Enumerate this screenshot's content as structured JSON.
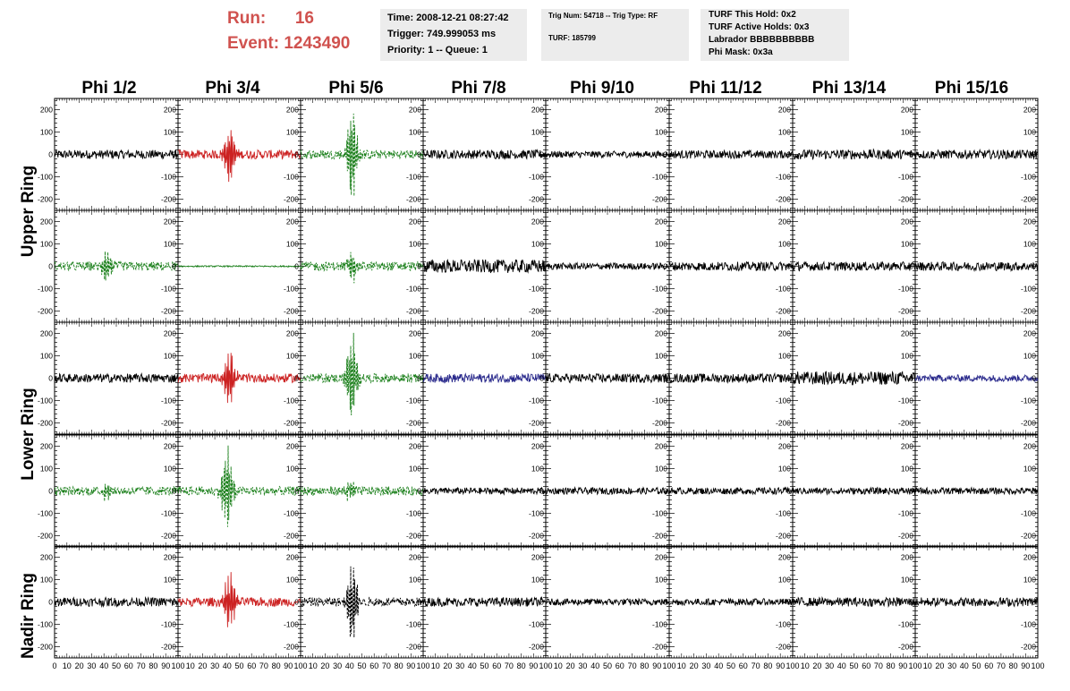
{
  "header": {
    "run_label": "Run:",
    "run_value": "16",
    "event_label": "Event:",
    "event_value": "1243490"
  },
  "info_boxes": {
    "time": "Time: 2008-12-21 08:27:42",
    "trigger": "Trigger: 749.999053 ms",
    "priority": "Priority: 1 -- Queue: 1",
    "trig_num": "Trig Num: 54718 -- Trig Type: RF",
    "turf": "TURF: 185799",
    "turf_hold": "TURF This Hold: 0x2",
    "turf_active": "TURF Active Holds: 0x3",
    "labrador": "Labrador BBBBBBBBBB",
    "phi_mask": "Phi Mask: 0x3a"
  },
  "columns": [
    "Phi 1/2",
    "Phi 3/4",
    "Phi 5/6",
    "Phi 7/8",
    "Phi 9/10",
    "Phi 11/12",
    "Phi 13/14",
    "Phi 15/16"
  ],
  "ring_labels": [
    "Upper Ring",
    "Lower Ring",
    "Nadir Ring"
  ],
  "y_ticks": [
    "200",
    "100",
    "0",
    "-100",
    "-200"
  ],
  "x_ticks_first": [
    "0",
    "10",
    "20",
    "30",
    "40",
    "50",
    "60",
    "70",
    "80",
    "90",
    "100"
  ],
  "x_ticks_other": [
    "10",
    "20",
    "30",
    "40",
    "50",
    "60",
    "70",
    "80",
    "90",
    "100"
  ],
  "colors": {
    "black": "#000000",
    "red": "#cc2222",
    "green": "#1a7f1a",
    "blue": "#2a2a8c",
    "header_red": "#d0524f",
    "box_grey": "#ececec"
  },
  "chart_data": {
    "type": "line",
    "xlim": [
      0,
      100
    ],
    "ylim": [
      -250,
      250
    ],
    "panels": [
      [
        "black",
        "red",
        "green-dashed",
        "black",
        "black",
        "black",
        "black",
        "black"
      ],
      [
        "green-dashed",
        "green-flat",
        "green-dashed",
        "black",
        "black",
        "black",
        "black",
        "black"
      ],
      [
        "black",
        "red",
        "green-dashed",
        "blue",
        "black",
        "black",
        "black",
        "blue"
      ],
      [
        "green-dashed",
        "green-dashed",
        "green-dashed",
        "black",
        "black",
        "black",
        "black",
        "black"
      ],
      [
        "black",
        "red",
        "black-dashed",
        "black",
        "black",
        "black",
        "black",
        "black"
      ]
    ],
    "amplitude": [
      [
        20,
        140,
        220,
        20,
        15,
        18,
        22,
        20
      ],
      [
        70,
        5,
        70,
        30,
        15,
        20,
        20,
        20
      ],
      [
        20,
        140,
        220,
        20,
        20,
        20,
        30,
        15
      ],
      [
        50,
        220,
        50,
        15,
        15,
        15,
        15,
        15
      ],
      [
        20,
        140,
        200,
        20,
        15,
        15,
        20,
        20
      ]
    ],
    "pulse_center": [
      [
        40,
        42,
        42,
        40,
        40,
        40,
        40,
        40
      ],
      [
        42,
        42,
        42,
        45,
        40,
        40,
        40,
        40
      ],
      [
        40,
        42,
        42,
        40,
        40,
        40,
        60,
        40
      ],
      [
        42,
        40,
        40,
        40,
        40,
        40,
        40,
        40
      ],
      [
        40,
        42,
        42,
        40,
        40,
        40,
        40,
        40
      ]
    ]
  }
}
